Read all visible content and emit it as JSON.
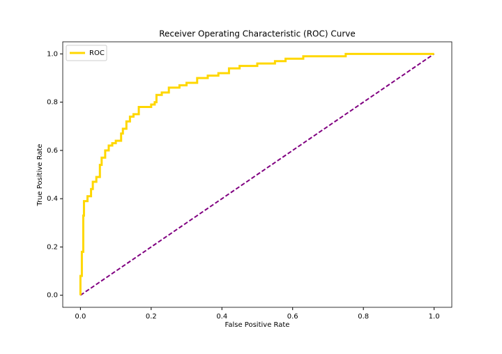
{
  "chart_data": {
    "type": "line",
    "title": "Receiver Operating Characteristic (ROC) Curve",
    "x_label": "False Positive Rate",
    "y_label": "True Positive Rate",
    "xlim": [
      -0.05,
      1.05
    ],
    "ylim": [
      -0.05,
      1.05
    ],
    "xticks": [
      {
        "value": 0,
        "label": "0.0"
      },
      {
        "value": 0.2,
        "label": "0.2"
      },
      {
        "value": 0.4,
        "label": "0.4"
      },
      {
        "value": 0.6,
        "label": "0.6"
      },
      {
        "value": 0.8,
        "label": "0.8"
      },
      {
        "value": 1,
        "label": "1.0"
      }
    ],
    "yticks": [
      {
        "value": 0,
        "label": "0.0"
      },
      {
        "value": 0.2,
        "label": "0.2"
      },
      {
        "value": 0.4,
        "label": "0.4"
      },
      {
        "value": 0.6,
        "label": "0.6"
      },
      {
        "value": 0.8,
        "label": "0.8"
      },
      {
        "value": 1,
        "label": "1.0"
      }
    ],
    "legend": "upper left",
    "series": [
      {
        "name": "ROC",
        "color": "#ffd700",
        "width": 3,
        "style": "solid",
        "x": [
          0,
          0,
          0.004,
          0.004,
          0.008,
          0.008,
          0.01,
          0.01,
          0.02,
          0.02,
          0.03,
          0.03,
          0.035,
          0.035,
          0.045,
          0.045,
          0.055,
          0.055,
          0.06,
          0.06,
          0.07,
          0.07,
          0.08,
          0.08,
          0.09,
          0.09,
          0.1,
          0.1,
          0.115,
          0.115,
          0.12,
          0.12,
          0.13,
          0.13,
          0.14,
          0.14,
          0.15,
          0.15,
          0.165,
          0.165,
          0.2,
          0.2,
          0.21,
          0.21,
          0.215,
          0.215,
          0.23,
          0.23,
          0.25,
          0.25,
          0.28,
          0.28,
          0.3,
          0.3,
          0.33,
          0.33,
          0.36,
          0.36,
          0.39,
          0.39,
          0.42,
          0.42,
          0.45,
          0.45,
          0.5,
          0.5,
          0.55,
          0.55,
          0.58,
          0.58,
          0.63,
          0.63,
          0.75,
          0.75,
          1.0
        ],
        "values": [
          0,
          0.08,
          0.08,
          0.18,
          0.18,
          0.33,
          0.33,
          0.39,
          0.39,
          0.41,
          0.41,
          0.44,
          0.44,
          0.47,
          0.47,
          0.49,
          0.49,
          0.54,
          0.54,
          0.57,
          0.57,
          0.6,
          0.6,
          0.62,
          0.62,
          0.63,
          0.63,
          0.64,
          0.64,
          0.67,
          0.67,
          0.69,
          0.69,
          0.72,
          0.72,
          0.74,
          0.74,
          0.75,
          0.75,
          0.78,
          0.78,
          0.79,
          0.79,
          0.8,
          0.8,
          0.83,
          0.83,
          0.84,
          0.84,
          0.86,
          0.86,
          0.87,
          0.87,
          0.88,
          0.88,
          0.9,
          0.9,
          0.91,
          0.91,
          0.92,
          0.92,
          0.94,
          0.94,
          0.95,
          0.95,
          0.96,
          0.96,
          0.97,
          0.97,
          0.98,
          0.98,
          0.99,
          0.99,
          1.0,
          1.0
        ]
      },
      {
        "color": "#800080",
        "width": 2,
        "style": "dashed",
        "x": [
          0,
          1
        ],
        "values": [
          0,
          1
        ]
      }
    ]
  }
}
